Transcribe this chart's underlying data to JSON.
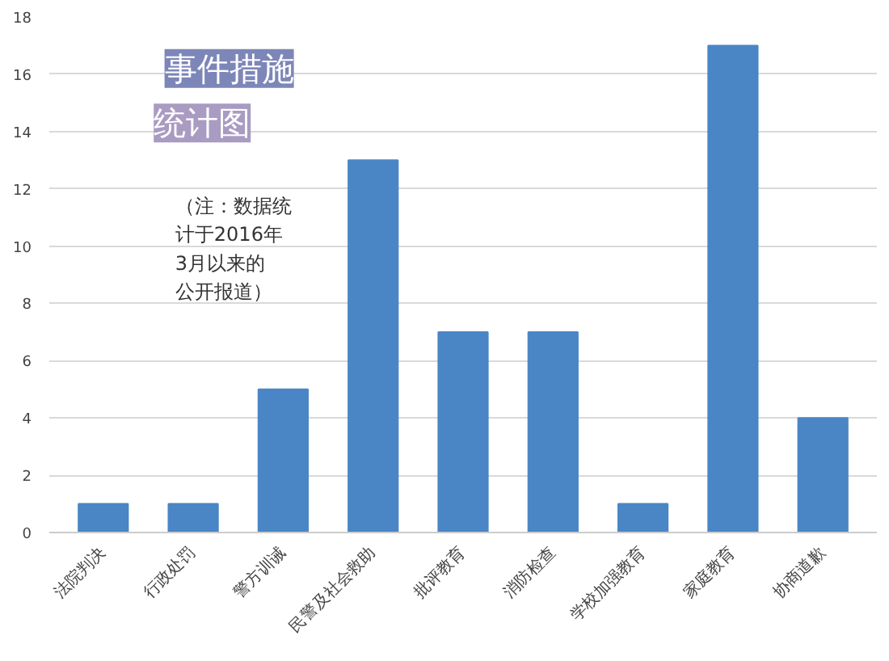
{
  "chart_data": {
    "type": "bar",
    "title": "事件措施统计图",
    "categories": [
      "法院判决",
      "行政处罚",
      "警方训诫",
      "民警及社会救助",
      "批评教育",
      "消防检查",
      "学校加强教育",
      "家庭教育",
      "协商道歉"
    ],
    "values": [
      1,
      1,
      5,
      13,
      7,
      7,
      1,
      17,
      4
    ],
    "color": "#4a86c5",
    "ylim": [
      0,
      18
    ],
    "yticks": [
      0,
      2,
      4,
      6,
      8,
      10,
      12,
      14,
      16,
      18
    ],
    "grid": "y",
    "annotations": [
      "（注：数据统",
      "计于2016年",
      "3月以来的",
      "公开报道）"
    ]
  }
}
